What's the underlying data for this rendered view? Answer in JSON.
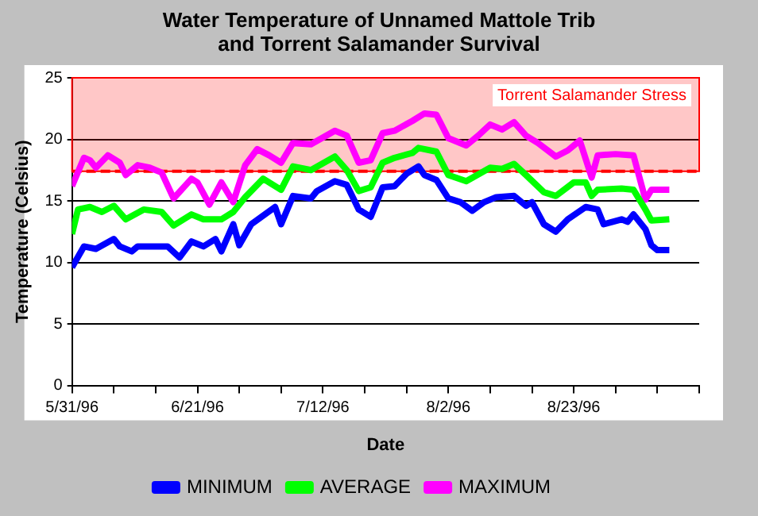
{
  "chart_data": {
    "type": "line",
    "title": "Water Temperature of Unnamed Mattole Trib and Torrent Salamander Survival",
    "xlabel": "Date",
    "ylabel": "Temperature (Celsius)",
    "xlim": [
      "1996-05-31",
      "1996-09-13"
    ],
    "xticks": [
      {
        "value": "1996-05-31",
        "label": "5/31/96"
      },
      {
        "value": "1996-06-07",
        "label": null
      },
      {
        "value": "1996-06-14",
        "label": null
      },
      {
        "value": "1996-06-21",
        "label": "6/21/96"
      },
      {
        "value": "1996-06-28",
        "label": null
      },
      {
        "value": "1996-07-05",
        "label": null
      },
      {
        "value": "1996-07-12",
        "label": "7/12/96"
      },
      {
        "value": "1996-07-19",
        "label": null
      },
      {
        "value": "1996-07-26",
        "label": null
      },
      {
        "value": "1996-08-02",
        "label": "8/2/96"
      },
      {
        "value": "1996-08-09",
        "label": null
      },
      {
        "value": "1996-08-16",
        "label": null
      },
      {
        "value": "1996-08-23",
        "label": "8/23/96"
      },
      {
        "value": "1996-08-30",
        "label": null
      },
      {
        "value": "1996-09-06",
        "label": null
      },
      {
        "value": "1996-09-13",
        "label": null
      }
    ],
    "ylim": [
      0,
      25
    ],
    "yticks": [
      0,
      5,
      10,
      15,
      20,
      25
    ],
    "grid": "y",
    "legend": "bottom",
    "marker": "none",
    "line_style": "solid",
    "ref_lines": [
      {
        "axis": "y",
        "value": 17.4,
        "color": "#ff0000",
        "line_style": "dashed"
      }
    ],
    "bands": [
      {
        "axis": "y",
        "from": 17.4,
        "to": 25,
        "label": "Torrent Salamander Stress",
        "color": "#ff0000"
      }
    ],
    "series": [
      {
        "name": "MINIMUM",
        "color": "#0000ff",
        "x": [
          "1996-05-31",
          "1996-06-02",
          "1996-06-04",
          "1996-06-07",
          "1996-06-08",
          "1996-06-10",
          "1996-06-11",
          "1996-06-16",
          "1996-06-18",
          "1996-06-20",
          "1996-06-22",
          "1996-06-24",
          "1996-06-25",
          "1996-06-27",
          "1996-06-28",
          "1996-06-30",
          "1996-07-04",
          "1996-07-05",
          "1996-07-07",
          "1996-07-10",
          "1996-07-11",
          "1996-07-14",
          "1996-07-16",
          "1996-07-18",
          "1996-07-20",
          "1996-07-22",
          "1996-07-24",
          "1996-07-26",
          "1996-07-28",
          "1996-07-29",
          "1996-07-31",
          "1996-08-02",
          "1996-08-04",
          "1996-08-06",
          "1996-08-08",
          "1996-08-10",
          "1996-08-13",
          "1996-08-15",
          "1996-08-16",
          "1996-08-18",
          "1996-08-20",
          "1996-08-22",
          "1996-08-25",
          "1996-08-27",
          "1996-08-28",
          "1996-08-31",
          "1996-09-01",
          "1996-09-02",
          "1996-09-04",
          "1996-09-05",
          "1996-09-06",
          "1996-09-08"
        ],
        "values": [
          9.6,
          11.3,
          11.1,
          11.9,
          11.3,
          10.9,
          11.3,
          11.3,
          10.4,
          11.7,
          11.3,
          11.9,
          10.9,
          13.1,
          11.4,
          13.1,
          14.5,
          13.1,
          15.4,
          15.2,
          15.8,
          16.6,
          16.3,
          14.3,
          13.7,
          16.1,
          16.2,
          17.2,
          17.8,
          17.1,
          16.7,
          15.2,
          14.9,
          14.2,
          14.9,
          15.3,
          15.4,
          14.6,
          14.9,
          13.1,
          12.5,
          13.5,
          14.5,
          14.3,
          13.1,
          13.5,
          13.3,
          13.9,
          12.7,
          11.4,
          11.0,
          11.0
        ]
      },
      {
        "name": "AVERAGE",
        "color": "#00ff00",
        "x": [
          "1996-05-31",
          "1996-06-01",
          "1996-06-03",
          "1996-06-05",
          "1996-06-07",
          "1996-06-09",
          "1996-06-12",
          "1996-06-15",
          "1996-06-17",
          "1996-06-20",
          "1996-06-22",
          "1996-06-25",
          "1996-06-27",
          "1996-06-29",
          "1996-07-02",
          "1996-07-05",
          "1996-07-07",
          "1996-07-10",
          "1996-07-14",
          "1996-07-16",
          "1996-07-18",
          "1996-07-20",
          "1996-07-22",
          "1996-07-24",
          "1996-07-27",
          "1996-07-28",
          "1996-07-31",
          "1996-08-02",
          "1996-08-05",
          "1996-08-09",
          "1996-08-11",
          "1996-08-13",
          "1996-08-15",
          "1996-08-18",
          "1996-08-20",
          "1996-08-23",
          "1996-08-25",
          "1996-08-26",
          "1996-08-27",
          "1996-08-31",
          "1996-09-02",
          "1996-09-04",
          "1996-09-05",
          "1996-09-08"
        ],
        "values": [
          12.3,
          14.3,
          14.5,
          14.1,
          14.6,
          13.5,
          14.3,
          14.1,
          13.0,
          13.9,
          13.5,
          13.5,
          14.1,
          15.3,
          16.8,
          15.9,
          17.8,
          17.5,
          18.6,
          17.5,
          15.8,
          16.1,
          18.1,
          18.5,
          18.9,
          19.3,
          19.0,
          17.1,
          16.6,
          17.7,
          17.6,
          18.0,
          17.1,
          15.7,
          15.4,
          16.5,
          16.5,
          15.4,
          15.9,
          16.0,
          15.9,
          14.3,
          13.4,
          13.5
        ]
      },
      {
        "name": "MAXIMUM",
        "color": "#ff00ff",
        "x": [
          "1996-05-31",
          "1996-06-02",
          "1996-06-03",
          "1996-06-04",
          "1996-06-06",
          "1996-06-08",
          "1996-06-09",
          "1996-06-11",
          "1996-06-13",
          "1996-06-15",
          "1996-06-17",
          "1996-06-20",
          "1996-06-21",
          "1996-06-23",
          "1996-06-25",
          "1996-06-27",
          "1996-06-29",
          "1996-07-01",
          "1996-07-03",
          "1996-07-05",
          "1996-07-07",
          "1996-07-10",
          "1996-07-14",
          "1996-07-16",
          "1996-07-18",
          "1996-07-20",
          "1996-07-22",
          "1996-07-24",
          "1996-07-27",
          "1996-07-29",
          "1996-07-31",
          "1996-08-02",
          "1996-08-05",
          "1996-08-07",
          "1996-08-09",
          "1996-08-11",
          "1996-08-13",
          "1996-08-15",
          "1996-08-17",
          "1996-08-20",
          "1996-08-22",
          "1996-08-24",
          "1996-08-26",
          "1996-08-27",
          "1996-08-30",
          "1996-09-02",
          "1996-09-04",
          "1996-09-05",
          "1996-09-08"
        ],
        "values": [
          16.2,
          18.5,
          18.3,
          17.7,
          18.7,
          18.1,
          17.1,
          17.9,
          17.7,
          17.3,
          15.2,
          16.8,
          16.5,
          14.7,
          16.5,
          14.9,
          17.9,
          19.2,
          18.7,
          18.1,
          19.7,
          19.6,
          20.7,
          20.3,
          18.1,
          18.3,
          20.5,
          20.7,
          21.5,
          22.1,
          22.0,
          20.1,
          19.5,
          20.3,
          21.2,
          20.8,
          21.4,
          20.3,
          19.7,
          18.6,
          19.1,
          19.9,
          16.9,
          18.7,
          18.8,
          18.7,
          15.1,
          15.9,
          15.9
        ]
      }
    ]
  }
}
